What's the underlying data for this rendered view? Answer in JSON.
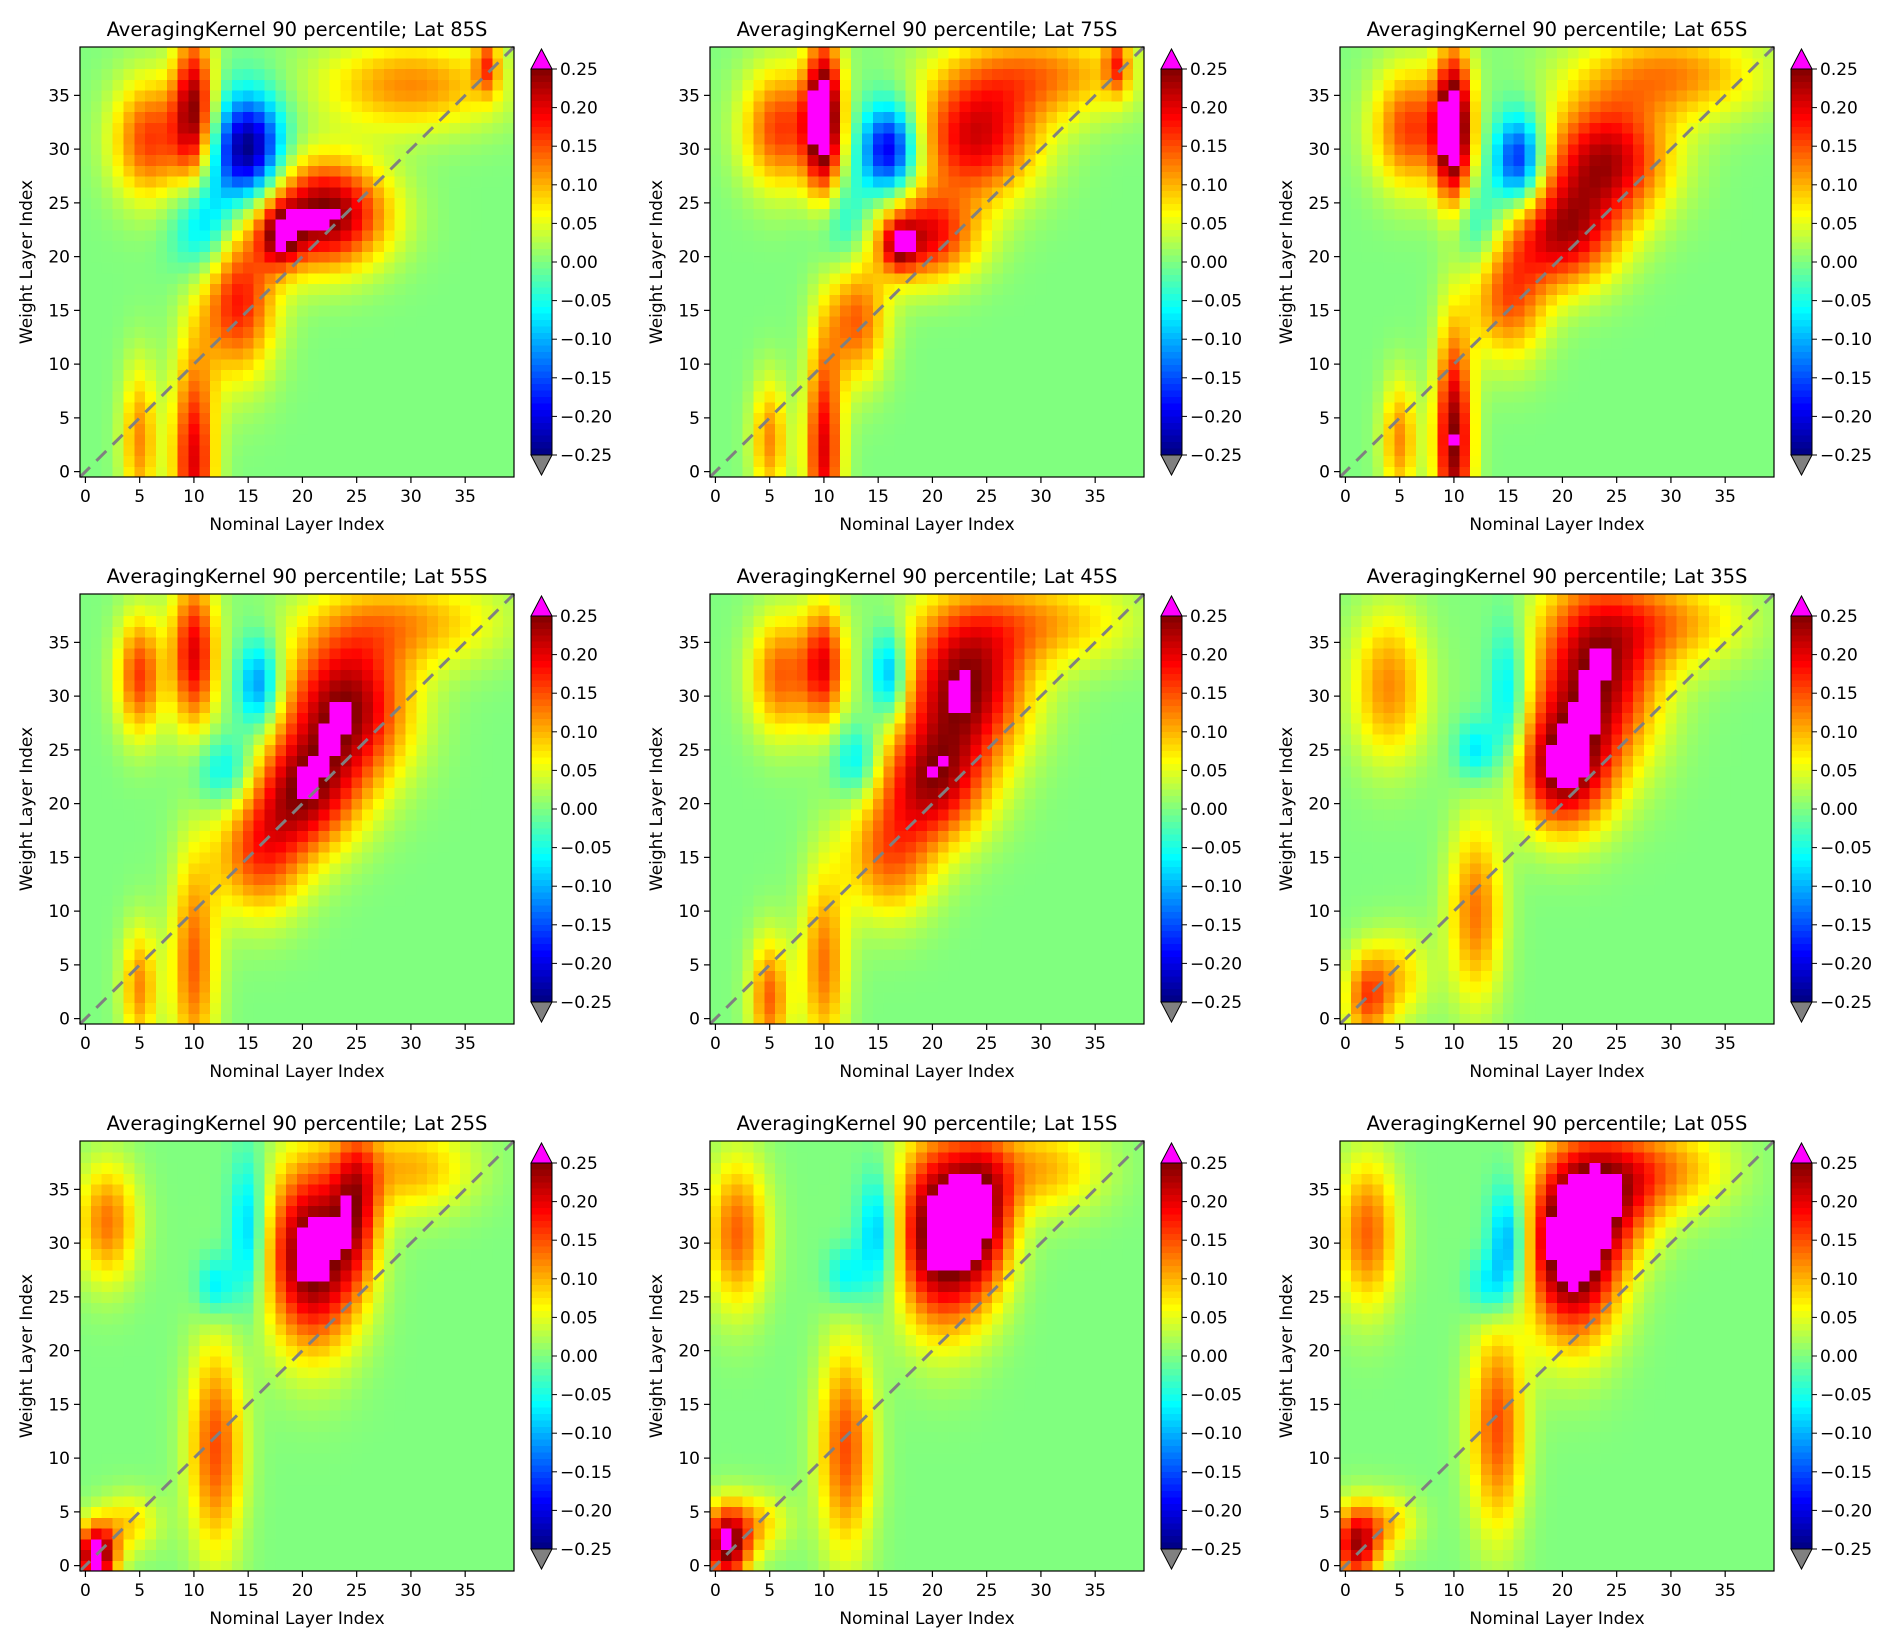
{
  "figure": {
    "xlabel": "Nominal Layer Index",
    "ylabel": "Weight Layer Index",
    "colorbar_ticks": [
      "0.25",
      "0.20",
      "0.15",
      "0.10",
      "0.05",
      "0.00",
      "−0.05",
      "−0.10",
      "−0.15",
      "−0.20",
      "−0.25"
    ],
    "x_ticks": [
      "0",
      "5",
      "10",
      "15",
      "20",
      "25",
      "30",
      "35"
    ],
    "y_ticks": [
      "0",
      "5",
      "10",
      "15",
      "20",
      "25",
      "30",
      "35"
    ],
    "over_color": "#ff00ff",
    "under_color": "#808080",
    "diagonal_color": "#808080",
    "colormap": "jet"
  },
  "chart_data": [
    {
      "type": "heatmap",
      "title": "AveragingKernel 90 percentile; Lat 85S",
      "xlabel": "Nominal Layer Index",
      "ylabel": "Weight Layer Index",
      "xlim": [
        0,
        39
      ],
      "ylim": [
        0,
        39
      ],
      "clim": [
        -0.25,
        0.25
      ],
      "features": [
        {
          "x": 10,
          "y": 1,
          "sx": 1.4,
          "sy": 7,
          "a": 0.2
        },
        {
          "x": 5,
          "y": 3,
          "sx": 1.2,
          "sy": 5,
          "a": 0.12
        },
        {
          "x": 14,
          "y": 16,
          "sx": 2.5,
          "sy": 5,
          "a": 0.18
        },
        {
          "x": 22,
          "y": 24,
          "sx": 4,
          "sy": 3.5,
          "a": 0.26
        },
        {
          "x": 18,
          "y": 22,
          "sx": 1.3,
          "sy": 2,
          "a": 0.15
        },
        {
          "x": 10,
          "y": 34,
          "sx": 1.3,
          "sy": 5,
          "a": 0.22
        },
        {
          "x": 6,
          "y": 31,
          "sx": 2.5,
          "sy": 4,
          "a": 0.16
        },
        {
          "x": 15,
          "y": 30,
          "sx": 2.2,
          "sy": 3.5,
          "a": -0.26
        },
        {
          "x": 11,
          "y": 23,
          "sx": 2,
          "sy": 3.5,
          "a": -0.12
        },
        {
          "x": 30,
          "y": 36,
          "sx": 6,
          "sy": 3,
          "a": 0.12
        },
        {
          "x": 37,
          "y": 38,
          "sx": 0.8,
          "sy": 2,
          "a": 0.12
        }
      ]
    },
    {
      "type": "heatmap",
      "title": "AveragingKernel 90 percentile; Lat 75S",
      "xlabel": "Nominal Layer Index",
      "ylabel": "Weight Layer Index",
      "xlim": [
        0,
        39
      ],
      "ylim": [
        0,
        39
      ],
      "clim": [
        -0.25,
        0.25
      ],
      "features": [
        {
          "x": 10,
          "y": 2,
          "sx": 1.2,
          "sy": 7,
          "a": 0.2
        },
        {
          "x": 5,
          "y": 3,
          "sx": 1.2,
          "sy": 4,
          "a": 0.12
        },
        {
          "x": 13,
          "y": 14,
          "sx": 2,
          "sy": 4,
          "a": 0.14
        },
        {
          "x": 19,
          "y": 22,
          "sx": 3.5,
          "sy": 3,
          "a": 0.2
        },
        {
          "x": 17,
          "y": 21,
          "sx": 1,
          "sy": 1.5,
          "a": 0.12
        },
        {
          "x": 10,
          "y": 33,
          "sx": 1.2,
          "sy": 5,
          "a": 0.3
        },
        {
          "x": 6,
          "y": 32,
          "sx": 2.5,
          "sy": 4,
          "a": 0.16
        },
        {
          "x": 16,
          "y": 30,
          "sx": 1.8,
          "sy": 3,
          "a": -0.22
        },
        {
          "x": 24,
          "y": 31,
          "sx": 4,
          "sy": 4,
          "a": 0.2
        },
        {
          "x": 12,
          "y": 23,
          "sx": 2,
          "sy": 3,
          "a": -0.08
        },
        {
          "x": 30,
          "y": 37,
          "sx": 6,
          "sy": 3,
          "a": 0.12
        },
        {
          "x": 37,
          "y": 38,
          "sx": 0.8,
          "sy": 2,
          "a": 0.12
        }
      ]
    },
    {
      "type": "heatmap",
      "title": "AveragingKernel 90 percentile; Lat 65S",
      "xlabel": "Nominal Layer Index",
      "ylabel": "Weight Layer Index",
      "xlim": [
        0,
        39
      ],
      "ylim": [
        0,
        39
      ],
      "clim": [
        -0.25,
        0.25
      ],
      "features": [
        {
          "x": 10,
          "y": 3,
          "sx": 1.2,
          "sy": 7,
          "a": 0.25
        },
        {
          "x": 5,
          "y": 3,
          "sx": 1.2,
          "sy": 4,
          "a": 0.12
        },
        {
          "x": 15,
          "y": 16,
          "sx": 2.5,
          "sy": 4,
          "a": 0.14
        },
        {
          "x": 20,
          "y": 22,
          "sx": 3.5,
          "sy": 3.5,
          "a": 0.2
        },
        {
          "x": 24,
          "y": 29,
          "sx": 4,
          "sy": 4,
          "a": 0.22
        },
        {
          "x": 10,
          "y": 32,
          "sx": 1.2,
          "sy": 5,
          "a": 0.3
        },
        {
          "x": 6,
          "y": 32,
          "sx": 2.5,
          "sy": 4,
          "a": 0.16
        },
        {
          "x": 16,
          "y": 29,
          "sx": 1.6,
          "sy": 3,
          "a": -0.2
        },
        {
          "x": 12,
          "y": 23,
          "sx": 1.8,
          "sy": 3,
          "a": -0.07
        },
        {
          "x": 30,
          "y": 37,
          "sx": 6,
          "sy": 3,
          "a": 0.12
        }
      ]
    },
    {
      "type": "heatmap",
      "title": "AveragingKernel 90 percentile; Lat 55S",
      "xlabel": "Nominal Layer Index",
      "ylabel": "Weight Layer Index",
      "xlim": [
        0,
        39
      ],
      "ylim": [
        0,
        39
      ],
      "clim": [
        -0.25,
        0.25
      ],
      "features": [
        {
          "x": 10,
          "y": 5,
          "sx": 1.5,
          "sy": 7,
          "a": 0.14
        },
        {
          "x": 5,
          "y": 3,
          "sx": 1.2,
          "sy": 4,
          "a": 0.12
        },
        {
          "x": 16,
          "y": 15,
          "sx": 3,
          "sy": 4,
          "a": 0.14
        },
        {
          "x": 20,
          "y": 21,
          "sx": 3.5,
          "sy": 4,
          "a": 0.2
        },
        {
          "x": 24,
          "y": 29,
          "sx": 4,
          "sy": 5,
          "a": 0.24
        },
        {
          "x": 10,
          "y": 34,
          "sx": 1.5,
          "sy": 5,
          "a": 0.2
        },
        {
          "x": 5,
          "y": 32,
          "sx": 1.5,
          "sy": 4,
          "a": 0.16
        },
        {
          "x": 16,
          "y": 31,
          "sx": 1.4,
          "sy": 3,
          "a": -0.14
        },
        {
          "x": 13,
          "y": 23,
          "sx": 2,
          "sy": 2.5,
          "a": -0.09
        },
        {
          "x": 30,
          "y": 37,
          "sx": 6,
          "sy": 3,
          "a": 0.1
        }
      ]
    },
    {
      "type": "heatmap",
      "title": "AveragingKernel 90 percentile; Lat 45S",
      "xlabel": "Nominal Layer Index",
      "ylabel": "Weight Layer Index",
      "xlim": [
        0,
        39
      ],
      "ylim": [
        0,
        39
      ],
      "clim": [
        -0.25,
        0.25
      ],
      "features": [
        {
          "x": 10,
          "y": 5,
          "sx": 1.5,
          "sy": 6,
          "a": 0.13
        },
        {
          "x": 5,
          "y": 2,
          "sx": 1.3,
          "sy": 4,
          "a": 0.14
        },
        {
          "x": 16,
          "y": 15,
          "sx": 3,
          "sy": 4,
          "a": 0.13
        },
        {
          "x": 20,
          "y": 22,
          "sx": 3.5,
          "sy": 4,
          "a": 0.2
        },
        {
          "x": 23,
          "y": 31,
          "sx": 4,
          "sy": 5,
          "a": 0.24
        },
        {
          "x": 10,
          "y": 33,
          "sx": 1.4,
          "sy": 4,
          "a": 0.18
        },
        {
          "x": 6,
          "y": 32,
          "sx": 2,
          "sy": 4,
          "a": 0.14
        },
        {
          "x": 16,
          "y": 32,
          "sx": 1.2,
          "sy": 3,
          "a": -0.14
        },
        {
          "x": 13,
          "y": 24,
          "sx": 1.5,
          "sy": 2.5,
          "a": -0.09
        },
        {
          "x": 30,
          "y": 37,
          "sx": 6,
          "sy": 3,
          "a": 0.1
        }
      ]
    },
    {
      "type": "heatmap",
      "title": "AveragingKernel 90 percentile; Lat 35S",
      "xlabel": "Nominal Layer Index",
      "ylabel": "Weight Layer Index",
      "xlim": [
        0,
        39
      ],
      "ylim": [
        0,
        39
      ],
      "clim": [
        -0.25,
        0.25
      ],
      "features": [
        {
          "x": 12,
          "y": 10,
          "sx": 1.8,
          "sy": 6,
          "a": 0.13
        },
        {
          "x": 2,
          "y": 2,
          "sx": 1.5,
          "sy": 3,
          "a": 0.14
        },
        {
          "x": 5,
          "y": 4,
          "sx": 2,
          "sy": 3,
          "a": 0.08
        },
        {
          "x": 20,
          "y": 23,
          "sx": 3,
          "sy": 4,
          "a": 0.22
        },
        {
          "x": 23,
          "y": 32,
          "sx": 4,
          "sy": 6,
          "a": 0.24
        },
        {
          "x": 4,
          "y": 31,
          "sx": 2.5,
          "sy": 5,
          "a": 0.12
        },
        {
          "x": 15,
          "y": 30,
          "sx": 1.3,
          "sy": 5,
          "a": -0.1
        },
        {
          "x": 12,
          "y": 25,
          "sx": 1.3,
          "sy": 2,
          "a": -0.08
        },
        {
          "x": 30,
          "y": 37,
          "sx": 5,
          "sy": 3,
          "a": 0.1
        }
      ]
    },
    {
      "type": "heatmap",
      "title": "AveragingKernel 90 percentile; Lat 25S",
      "xlabel": "Nominal Layer Index",
      "ylabel": "Weight Layer Index",
      "xlim": [
        0,
        39
      ],
      "ylim": [
        0,
        39
      ],
      "clim": [
        -0.25,
        0.25
      ],
      "features": [
        {
          "x": 12,
          "y": 11,
          "sx": 1.8,
          "sy": 7,
          "a": 0.15
        },
        {
          "x": 1,
          "y": 1,
          "sx": 1.3,
          "sy": 2,
          "a": 0.28
        },
        {
          "x": 4,
          "y": 4,
          "sx": 2,
          "sy": 2,
          "a": 0.08
        },
        {
          "x": 21,
          "y": 29,
          "sx": 3,
          "sy": 6,
          "a": 0.28
        },
        {
          "x": 25,
          "y": 34,
          "sx": 1.5,
          "sy": 5,
          "a": 0.14
        },
        {
          "x": 2,
          "y": 32,
          "sx": 2,
          "sy": 4,
          "a": 0.13
        },
        {
          "x": 15,
          "y": 31,
          "sx": 1.2,
          "sy": 5,
          "a": -0.11
        },
        {
          "x": 12,
          "y": 26,
          "sx": 1.2,
          "sy": 2,
          "a": -0.08
        },
        {
          "x": 30,
          "y": 37,
          "sx": 4,
          "sy": 3,
          "a": 0.1
        }
      ]
    },
    {
      "type": "heatmap",
      "title": "AveragingKernel 90 percentile; Lat 15S",
      "xlabel": "Nominal Layer Index",
      "ylabel": "Weight Layer Index",
      "xlim": [
        0,
        39
      ],
      "ylim": [
        0,
        39
      ],
      "clim": [
        -0.25,
        0.25
      ],
      "features": [
        {
          "x": 12,
          "y": 11,
          "sx": 1.8,
          "sy": 7,
          "a": 0.15
        },
        {
          "x": 1,
          "y": 2,
          "sx": 1.5,
          "sy": 2.5,
          "a": 0.26
        },
        {
          "x": 4,
          "y": 4,
          "sx": 2,
          "sy": 2,
          "a": 0.08
        },
        {
          "x": 21,
          "y": 31,
          "sx": 3,
          "sy": 6,
          "a": 0.3
        },
        {
          "x": 25,
          "y": 33,
          "sx": 2,
          "sy": 5,
          "a": 0.14
        },
        {
          "x": 2,
          "y": 31,
          "sx": 2,
          "sy": 5,
          "a": 0.14
        },
        {
          "x": 15,
          "y": 31,
          "sx": 1.3,
          "sy": 4,
          "a": -0.12
        },
        {
          "x": 12,
          "y": 27,
          "sx": 1.3,
          "sy": 2,
          "a": -0.07
        },
        {
          "x": 30,
          "y": 37,
          "sx": 4,
          "sy": 3,
          "a": 0.1
        }
      ]
    },
    {
      "type": "heatmap",
      "title": "AveragingKernel 90 percentile; Lat 05S",
      "xlabel": "Nominal Layer Index",
      "ylabel": "Weight Layer Index",
      "xlim": [
        0,
        39
      ],
      "ylim": [
        0,
        39
      ],
      "clim": [
        -0.25,
        0.25
      ],
      "features": [
        {
          "x": 14,
          "y": 13,
          "sx": 1.8,
          "sy": 7,
          "a": 0.15
        },
        {
          "x": 1,
          "y": 2,
          "sx": 1.5,
          "sy": 2.5,
          "a": 0.22
        },
        {
          "x": 4,
          "y": 4,
          "sx": 2,
          "sy": 2,
          "a": 0.08
        },
        {
          "x": 21,
          "y": 30,
          "sx": 3,
          "sy": 6,
          "a": 0.32
        },
        {
          "x": 25,
          "y": 35,
          "sx": 3,
          "sy": 4,
          "a": 0.14
        },
        {
          "x": 2,
          "y": 31,
          "sx": 2,
          "sy": 5,
          "a": 0.14
        },
        {
          "x": 15,
          "y": 30,
          "sx": 1.3,
          "sy": 4,
          "a": -0.14
        },
        {
          "x": 13,
          "y": 26,
          "sx": 1.3,
          "sy": 2,
          "a": -0.07
        },
        {
          "x": 30,
          "y": 37,
          "sx": 4,
          "sy": 3,
          "a": 0.1
        }
      ]
    }
  ]
}
